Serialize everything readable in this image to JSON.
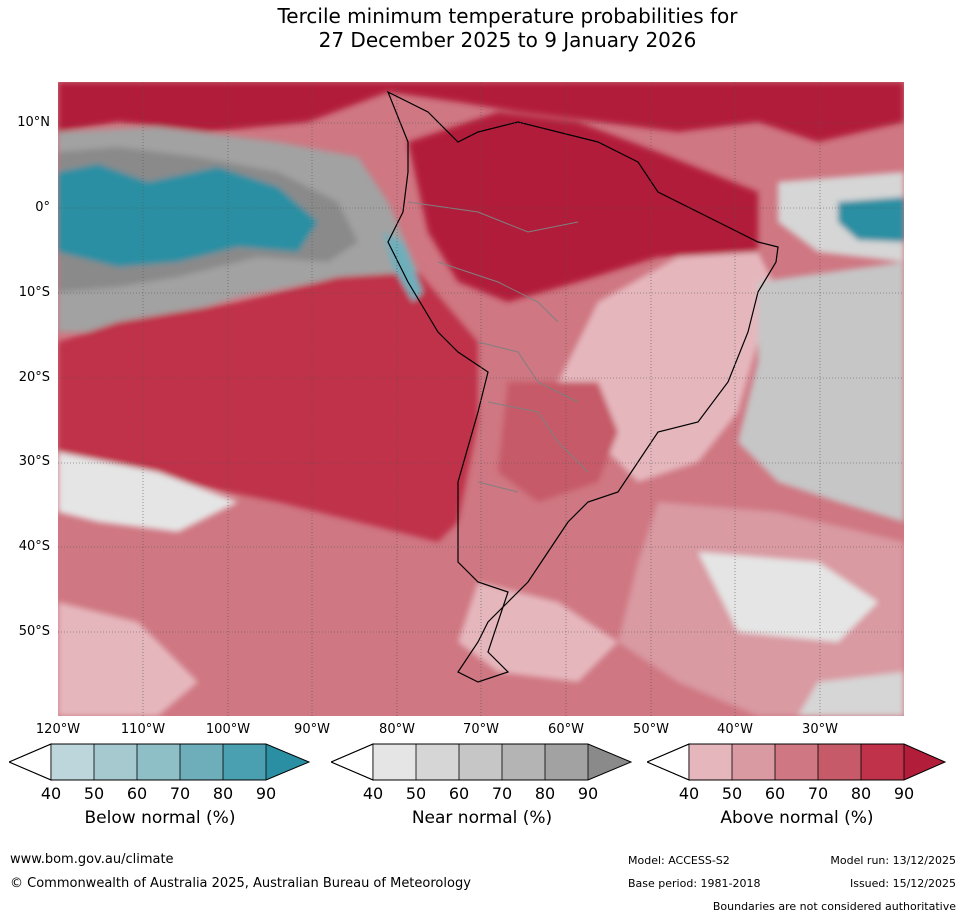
{
  "title": {
    "line1": "Tercile minimum temperature probabilities for",
    "line2": "27 December 2025 to 9 January 2026"
  },
  "axes": {
    "lat_labels": [
      "10°N",
      "0°",
      "10°S",
      "20°S",
      "30°S",
      "40°S",
      "50°S"
    ],
    "lon_labels": [
      "120°W",
      "110°W",
      "100°W",
      "90°W",
      "80°W",
      "70°W",
      "60°W",
      "50°W",
      "40°W",
      "30°W"
    ],
    "lat_range": [
      -60,
      15
    ],
    "lon_range": [
      -120,
      -20
    ]
  },
  "colorbars": [
    {
      "name": "below",
      "title": "Below normal (%)",
      "ticks": [
        "40",
        "50",
        "60",
        "70",
        "80",
        "90"
      ],
      "colors": [
        "#bcd6dc",
        "#a6c9d0",
        "#8ebec6",
        "#6eaebb",
        "#4aa0b0",
        "#2a8fa3"
      ]
    },
    {
      "name": "near",
      "title": "Near normal (%)",
      "ticks": [
        "40",
        "50",
        "60",
        "70",
        "80",
        "90"
      ],
      "colors": [
        "#e5e5e5",
        "#d6d6d6",
        "#c6c6c6",
        "#b4b4b4",
        "#a2a2a2",
        "#8a8a8a"
      ]
    },
    {
      "name": "above",
      "title": "Above normal (%)",
      "ticks": [
        "40",
        "50",
        "60",
        "70",
        "80",
        "90"
      ],
      "colors": [
        "#e5b7bd",
        "#d99aa2",
        "#cf7782",
        "#c65a68",
        "#bf3249",
        "#b21d3a"
      ]
    }
  ],
  "footer": {
    "url": "www.bom.gov.au/climate",
    "copyright": "© Commonwealth of Australia 2025, Australian Bureau of Meteorology",
    "model": "Model: ACCESS-S2",
    "base_period": "Base period: 1981-2018",
    "model_run": "Model run: 13/12/2025",
    "issued": "Issued: 15/12/2025",
    "disclaimer": "Boundaries are not considered authoritative"
  }
}
